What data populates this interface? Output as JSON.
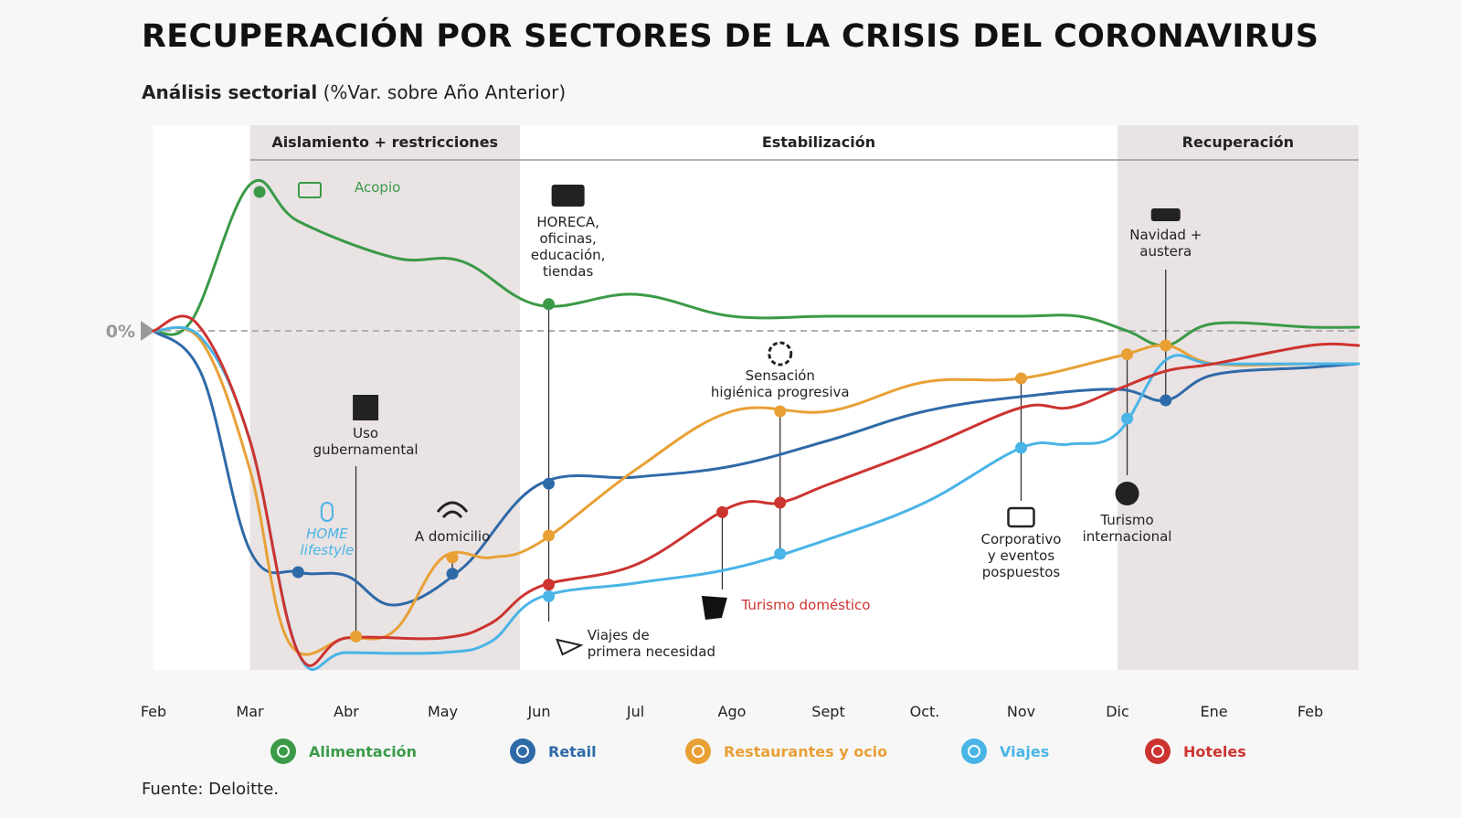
{
  "title": "RECUPERACIÓN POR SECTORES DE LA CRISIS DEL CORONAVIRUS",
  "subtitle_bold": "Análisis sectorial",
  "subtitle_rest": " (%Var. sobre Año Anterior)",
  "source": "Fuente: Deloitte.",
  "colors": {
    "alimentacion": "#3a9a47",
    "retail": "#2f6aa8",
    "restaurantes": "#e8a035",
    "viajes": "#49b4e6",
    "hoteles": "#cc3430",
    "phase_shade": "#e9e3e4",
    "zero_line": "#b0b0b0"
  },
  "chart_data": {
    "type": "line",
    "xlabels": [
      "Feb",
      "Mar",
      "Abr",
      "May",
      "Jun",
      "Jul",
      "Ago",
      "Sept",
      "Oct.",
      "Nov",
      "Dic",
      "Ene",
      "Feb"
    ],
    "zero_label": "0%",
    "grid": false,
    "phases": [
      {
        "label": "Aislamiento + restricciones",
        "x_start": 1,
        "x_end": 3.8,
        "shaded": true
      },
      {
        "label": "Estabilización",
        "x_start": 3.8,
        "x_end": 10,
        "shaded": false
      },
      {
        "label": "Recuperación",
        "x_start": 10,
        "x_end": 12.5,
        "shaded": true
      }
    ],
    "series": [
      {
        "name": "Alimentación",
        "color_key": "alimentacion",
        "x": [
          0,
          0.4,
          1.0,
          1.5,
          2.5,
          3.2,
          4.0,
          5.0,
          6.0,
          7.0,
          8.0,
          9.0,
          9.6,
          10.1,
          10.5,
          11.0,
          12.0,
          12.5
        ],
        "y": [
          0,
          3,
          40,
          30,
          20,
          19,
          7,
          10,
          4,
          4,
          4,
          4,
          4,
          0,
          -4,
          2,
          1,
          1
        ],
        "markers": [
          1.1,
          4.1
        ]
      },
      {
        "name": "Retail",
        "color_key": "retail",
        "x": [
          0,
          0.5,
          1.0,
          1.5,
          2.0,
          2.5,
          3.2,
          4.0,
          5.0,
          6.0,
          7.0,
          8.0,
          9.0,
          10.0,
          10.5,
          11.0,
          12.0,
          12.5
        ],
        "y": [
          0,
          -12,
          -60,
          -66,
          -67,
          -75,
          -65,
          -42,
          -40,
          -37,
          -30,
          -22,
          -18,
          -16,
          -19,
          -12,
          -10,
          -9
        ],
        "markers": [
          1.5,
          3.1,
          4.1,
          10.5
        ]
      },
      {
        "name": "Restaurantes y ocio",
        "color_key": "restaurantes",
        "x": [
          0,
          0.5,
          1.0,
          1.4,
          2.0,
          2.5,
          3.0,
          3.5,
          4.0,
          5.0,
          6.0,
          7.0,
          8.0,
          9.0,
          10.0,
          10.5,
          11.0,
          12.0,
          12.5
        ],
        "y": [
          0,
          -3,
          -38,
          -85,
          -84,
          -82,
          -62,
          -62,
          -58,
          -38,
          -22,
          -22,
          -14,
          -13,
          -7,
          -4,
          -9,
          -9,
          -9
        ],
        "markers": [
          2.1,
          3.1,
          4.1,
          6.5,
          9.0,
          10.1,
          10.5
        ]
      },
      {
        "name": "Viajes",
        "color_key": "viajes",
        "x": [
          0,
          0.5,
          1.0,
          1.5,
          2.0,
          3.0,
          3.5,
          4.0,
          5.0,
          6.0,
          7.0,
          8.0,
          9.0,
          9.5,
          10.0,
          10.5,
          11.0,
          12.0,
          12.5
        ],
        "y": [
          0,
          -2,
          -30,
          -88,
          -88,
          -88,
          -85,
          -73,
          -69,
          -65,
          -57,
          -47,
          -32,
          -31,
          -28,
          -8,
          -9,
          -9,
          -9
        ],
        "markers": [
          4.1,
          6.5,
          9.0,
          10.1
        ]
      },
      {
        "name": "Hoteles",
        "color_key": "hoteles",
        "x": [
          0,
          0.45,
          1.0,
          1.5,
          2.0,
          3.0,
          3.5,
          4.0,
          5.0,
          6.0,
          6.5,
          7.0,
          8.0,
          9.0,
          9.5,
          10.0,
          10.5,
          11.0,
          12.0,
          12.5
        ],
        "y": [
          0,
          2,
          -30,
          -88,
          -84,
          -84,
          -80,
          -70,
          -64,
          -48,
          -47,
          -42,
          -32,
          -21,
          -21,
          -16,
          -11,
          -9,
          -4,
          -4
        ],
        "markers": [
          4.1,
          5.9,
          6.5
        ]
      }
    ],
    "annotations": [
      {
        "label": "Acopio",
        "series_color": "alimentacion"
      },
      {
        "label": "HORECA,\noficinas,\neducación,\ntiendas"
      },
      {
        "label": "Uso\ngubernamental"
      },
      {
        "label": "HOME\nlifestyle",
        "series_color": "viajes"
      },
      {
        "label": "A domicilio"
      },
      {
        "label": "Sensación\nhigiénica progresiva"
      },
      {
        "label": "Viajes de\nprimera necesidad"
      },
      {
        "label": "Turismo doméstico",
        "series_color": "hoteles"
      },
      {
        "label": "Corporativo\ny eventos\npospuestos"
      },
      {
        "label": "Turismo\ninternacional"
      },
      {
        "label": "Navidad +\naustera"
      }
    ],
    "legend": [
      {
        "label": "Alimentación",
        "color_key": "alimentacion",
        "icon": "apple-icon"
      },
      {
        "label": "Retail",
        "color_key": "retail",
        "icon": "cart-icon"
      },
      {
        "label": "Restaurantes y ocio",
        "color_key": "restaurantes",
        "icon": "cutlery-icon"
      },
      {
        "label": "Viajes",
        "color_key": "viajes",
        "icon": "plane-icon"
      },
      {
        "label": "Hoteles",
        "color_key": "hoteles",
        "icon": "bed-icon"
      }
    ],
    "legend_position": "bottom"
  }
}
